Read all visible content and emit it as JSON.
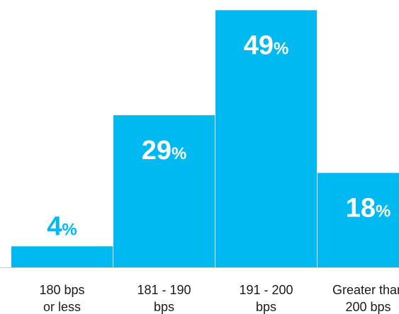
{
  "chart_data": {
    "type": "bar",
    "categories": [
      [
        "180 bps",
        "or less"
      ],
      [
        "181 - 190",
        "bps"
      ],
      [
        "191 - 200",
        "bps"
      ],
      [
        "Greater than",
        "200 bps"
      ]
    ],
    "values": [
      4,
      29,
      49,
      18
    ],
    "value_suffix": "%",
    "ylim": [
      0,
      50
    ],
    "grid": false,
    "legend": "none",
    "colors": {
      "bar": "#00b9f1",
      "baseline": "#cfcfcf",
      "category_text": "#1a1a1a"
    }
  }
}
